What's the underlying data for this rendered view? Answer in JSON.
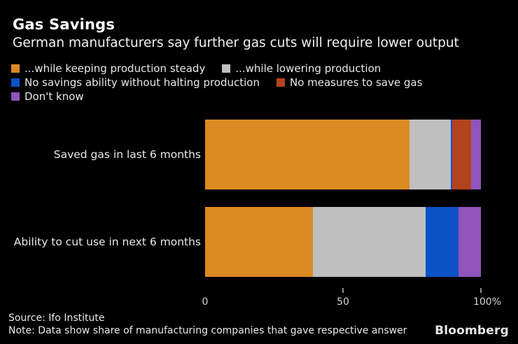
{
  "header": {
    "title": "Gas Savings",
    "subtitle": "German manufacturers say further gas cuts will require lower output"
  },
  "chart_data": {
    "type": "bar",
    "orientation": "horizontal",
    "stacked": true,
    "title": "Gas Savings",
    "subtitle": "German manufacturers say further gas cuts will require lower output",
    "categories": [
      "Saved gas in last 6 months",
      "Ability to cut use in next 6 months"
    ],
    "series": [
      {
        "name": "...while keeping production steady",
        "color": "#DC8A23",
        "values": [
          74,
          39
        ]
      },
      {
        "name": "...while lowering production",
        "color": "#BFBFBF",
        "values": [
          15,
          41
        ]
      },
      {
        "name": "No savings ability without halting production",
        "color": "#0A52C6",
        "values": [
          0.5,
          12
        ]
      },
      {
        "name": "No measures to save gas",
        "color": "#B2431E",
        "values": [
          7,
          0
        ]
      },
      {
        "name": "Don't know",
        "color": "#9054BB",
        "values": [
          3.5,
          8
        ]
      }
    ],
    "xlabel": "",
    "ylabel": "",
    "xlim": [
      0,
      100
    ],
    "x_ticks": [
      {
        "value": 0,
        "label": "0",
        "tick_mark": false
      },
      {
        "value": 50,
        "label": "50",
        "tick_mark": true
      },
      {
        "value": 100,
        "label": "100%",
        "tick_mark": true
      }
    ],
    "unit": "%",
    "grid": false,
    "legend_position": "top",
    "background": "#000000"
  },
  "footer": {
    "source": "Source: Ifo Institute",
    "note": "Note: Data show share of manufacturing companies that gave respective answer",
    "brand": "Bloomberg"
  }
}
